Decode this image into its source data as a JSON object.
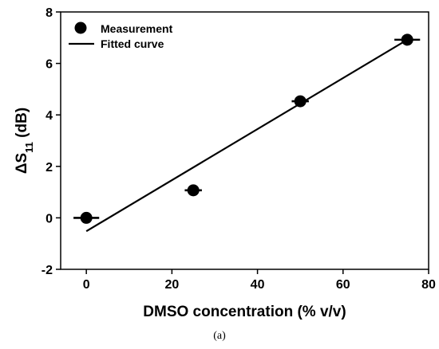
{
  "chart_data": {
    "type": "scatter",
    "xlabel": "DMSO concentration (% v/v)",
    "ylabel": "ΔS11 (dB)",
    "xlim": [
      -6,
      80
    ],
    "ylim": [
      -2,
      8
    ],
    "xticks": [
      0,
      20,
      40,
      60,
      80
    ],
    "yticks": [
      -2,
      0,
      2,
      4,
      6,
      8
    ],
    "legend_position": "top-left",
    "grid": false,
    "series": [
      {
        "name": "Measurement",
        "kind": "scatter",
        "x": [
          0,
          25,
          50,
          75
        ],
        "y": [
          0.0,
          1.07,
          4.53,
          6.92
        ],
        "x_error": [
          3,
          2,
          2,
          3
        ]
      },
      {
        "name": "Fitted curve",
        "kind": "line",
        "x": [
          0,
          75
        ],
        "y": [
          -0.52,
          6.92
        ]
      }
    ]
  },
  "caption": "(a)"
}
